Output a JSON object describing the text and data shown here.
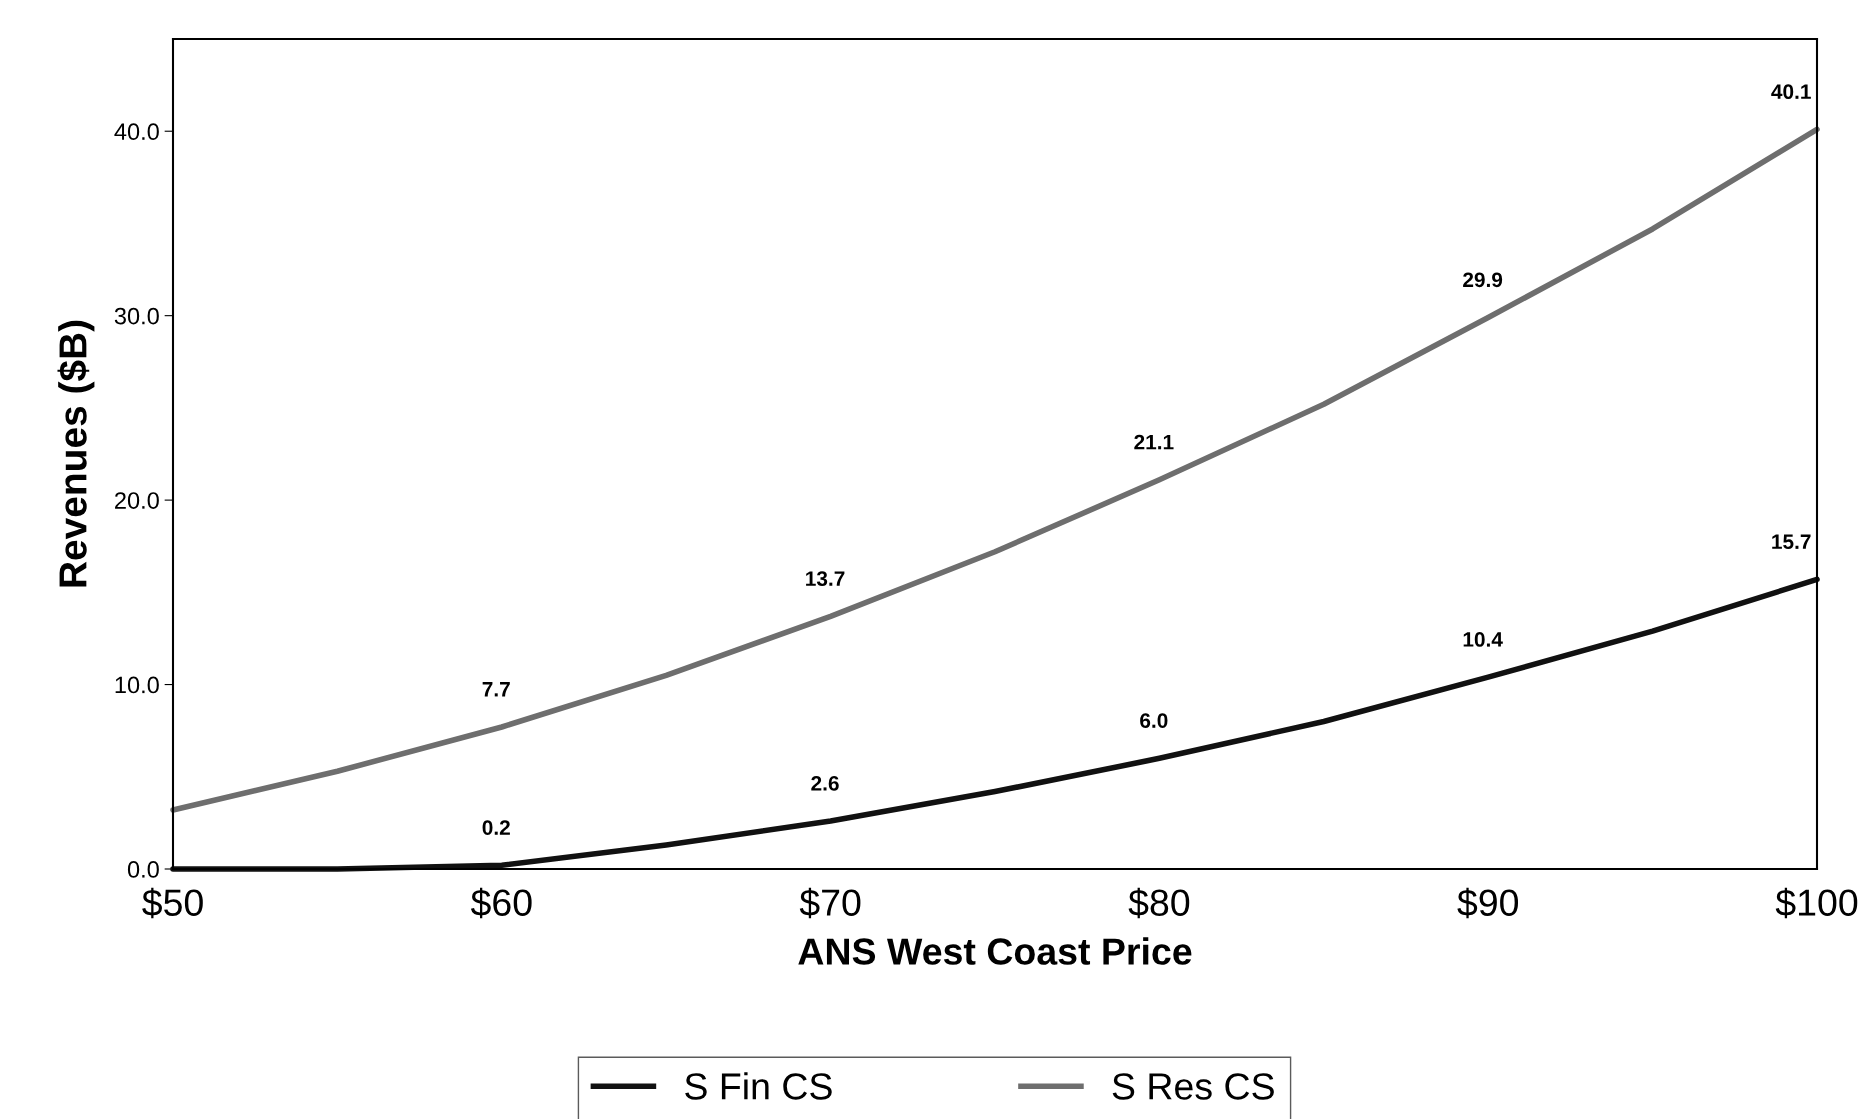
{
  "chart_data": {
    "type": "line",
    "xlabel": "ANS West Coast Price",
    "ylabel": "Revenues ($B)",
    "xlim": [
      50,
      100
    ],
    "xticks": [
      {
        "value": 50,
        "label": "$50"
      },
      {
        "value": 60,
        "label": "$60"
      },
      {
        "value": 70,
        "label": "$70"
      },
      {
        "value": 80,
        "label": "$80"
      },
      {
        "value": 90,
        "label": "$90"
      },
      {
        "value": 100,
        "label": "$100"
      }
    ],
    "ylim": [
      0,
      45
    ],
    "yticks": [
      {
        "value": 0,
        "label": "0.0"
      },
      {
        "value": 10,
        "label": "10.0"
      },
      {
        "value": 20,
        "label": "20.0"
      },
      {
        "value": 30,
        "label": "30.0"
      },
      {
        "value": 40,
        "label": "40.0"
      }
    ],
    "grid": false,
    "legend": "bottom",
    "marker": "none",
    "line_style": "solid",
    "series": [
      {
        "name": "S Fin CS",
        "color": "#111111",
        "x": [
          50,
          55,
          60,
          65,
          70,
          75,
          80,
          85,
          90,
          95,
          100
        ],
        "values": [
          0,
          0,
          0.2,
          1.3,
          2.6,
          4.2,
          6.0,
          8.0,
          10.4,
          12.9,
          15.7
        ],
        "value_labels": [
          null,
          null,
          "0.2",
          null,
          "2.6",
          null,
          "6.0",
          null,
          "10.4",
          null,
          "15.7"
        ]
      },
      {
        "name": "S Res CS",
        "color": "#6e6e6e",
        "x": [
          50,
          55,
          60,
          65,
          70,
          75,
          80,
          85,
          90,
          95,
          100
        ],
        "values": [
          3.2,
          5.3,
          7.7,
          10.5,
          13.7,
          17.2,
          21.1,
          25.2,
          29.9,
          34.7,
          40.1
        ],
        "value_labels": [
          null,
          null,
          "7.7",
          null,
          "13.7",
          null,
          "21.1",
          null,
          "29.9",
          null,
          "40.1"
        ]
      }
    ]
  }
}
